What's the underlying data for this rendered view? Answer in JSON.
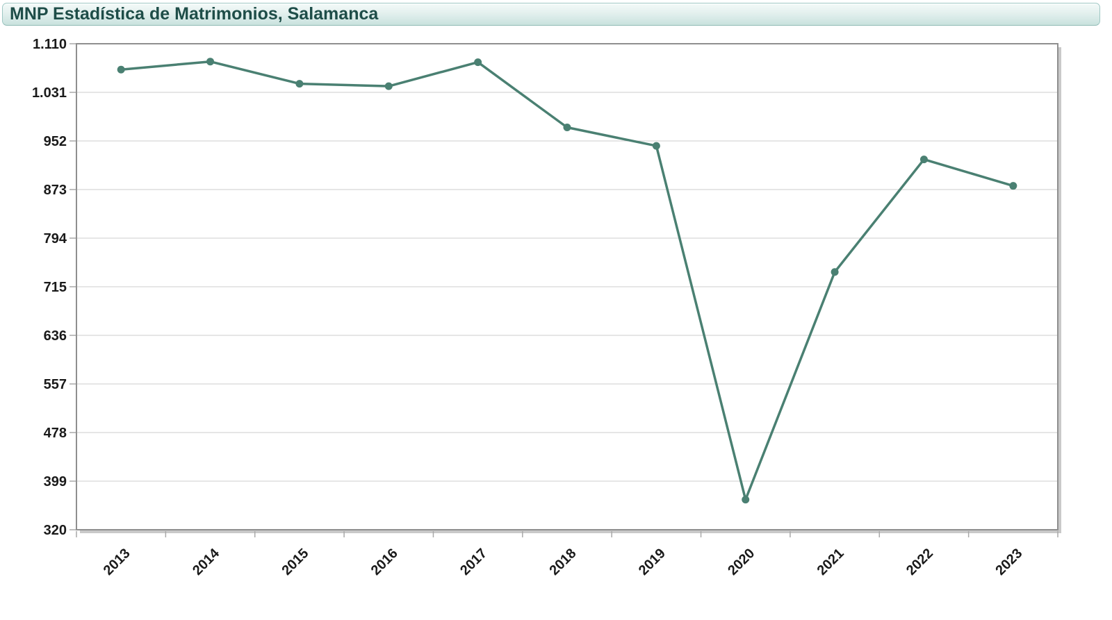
{
  "title_bar": {
    "title": "MNP Estadística de Matrimonios, Salamanca"
  },
  "chart_data": {
    "type": "line",
    "title": "MNP Estadística de Matrimonios, Salamanca",
    "categories": [
      "2013",
      "2014",
      "2015",
      "2016",
      "2017",
      "2018",
      "2019",
      "2020",
      "2021",
      "2022",
      "2023"
    ],
    "values": [
      1068,
      1081,
      1045,
      1041,
      1080,
      974,
      944,
      369,
      739,
      922,
      879
    ],
    "xlabel": "",
    "ylabel": "",
    "ylim": [
      320,
      1110
    ],
    "yticks": [
      320,
      399,
      478,
      557,
      636,
      715,
      794,
      873,
      952,
      1031,
      1110
    ],
    "ytick_labels": [
      "320",
      "399",
      "478",
      "557",
      "636",
      "715",
      "794",
      "873",
      "952",
      "1.031",
      "1.110"
    ],
    "ytick_step": 79,
    "grid": "horizontal-only",
    "legend": "none",
    "x_label_rotation_deg": -45,
    "line_color": "#4A8072",
    "marker": "filled-circle",
    "axis_label_color": "#1a1a1a",
    "gridline_color": "#cdcdcd",
    "plot_border_color": "#8f8f8f"
  }
}
